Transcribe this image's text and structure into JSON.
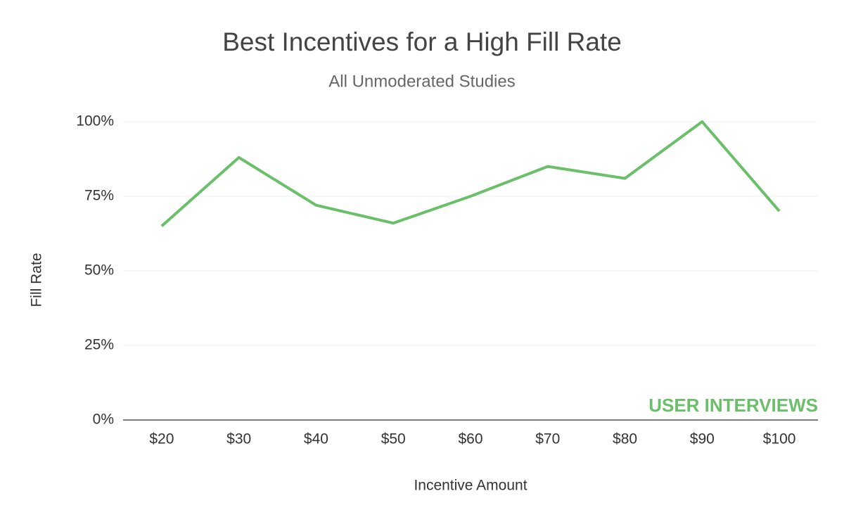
{
  "chart_data": {
    "type": "line",
    "title": "Best Incentives for a High Fill Rate",
    "subtitle": "All Unmoderated Studies",
    "x_label": "Incentive Amount",
    "y_label": "Fill Rate",
    "watermark": "USER INTERVIEWS",
    "categories": [
      "$20",
      "$30",
      "$40",
      "$50",
      "$60",
      "$70",
      "$80",
      "$90",
      "$100"
    ],
    "values": [
      65,
      88,
      72,
      66,
      75,
      85,
      81,
      100,
      70
    ],
    "color": "#6abf69",
    "ylim": [
      0,
      100
    ],
    "yticks": [
      {
        "value": 0,
        "label": "0%"
      },
      {
        "value": 25,
        "label": "25%"
      },
      {
        "value": 50,
        "label": "50%"
      },
      {
        "value": 75,
        "label": "75%"
      },
      {
        "value": 100,
        "label": "100%"
      }
    ],
    "grid": true
  }
}
